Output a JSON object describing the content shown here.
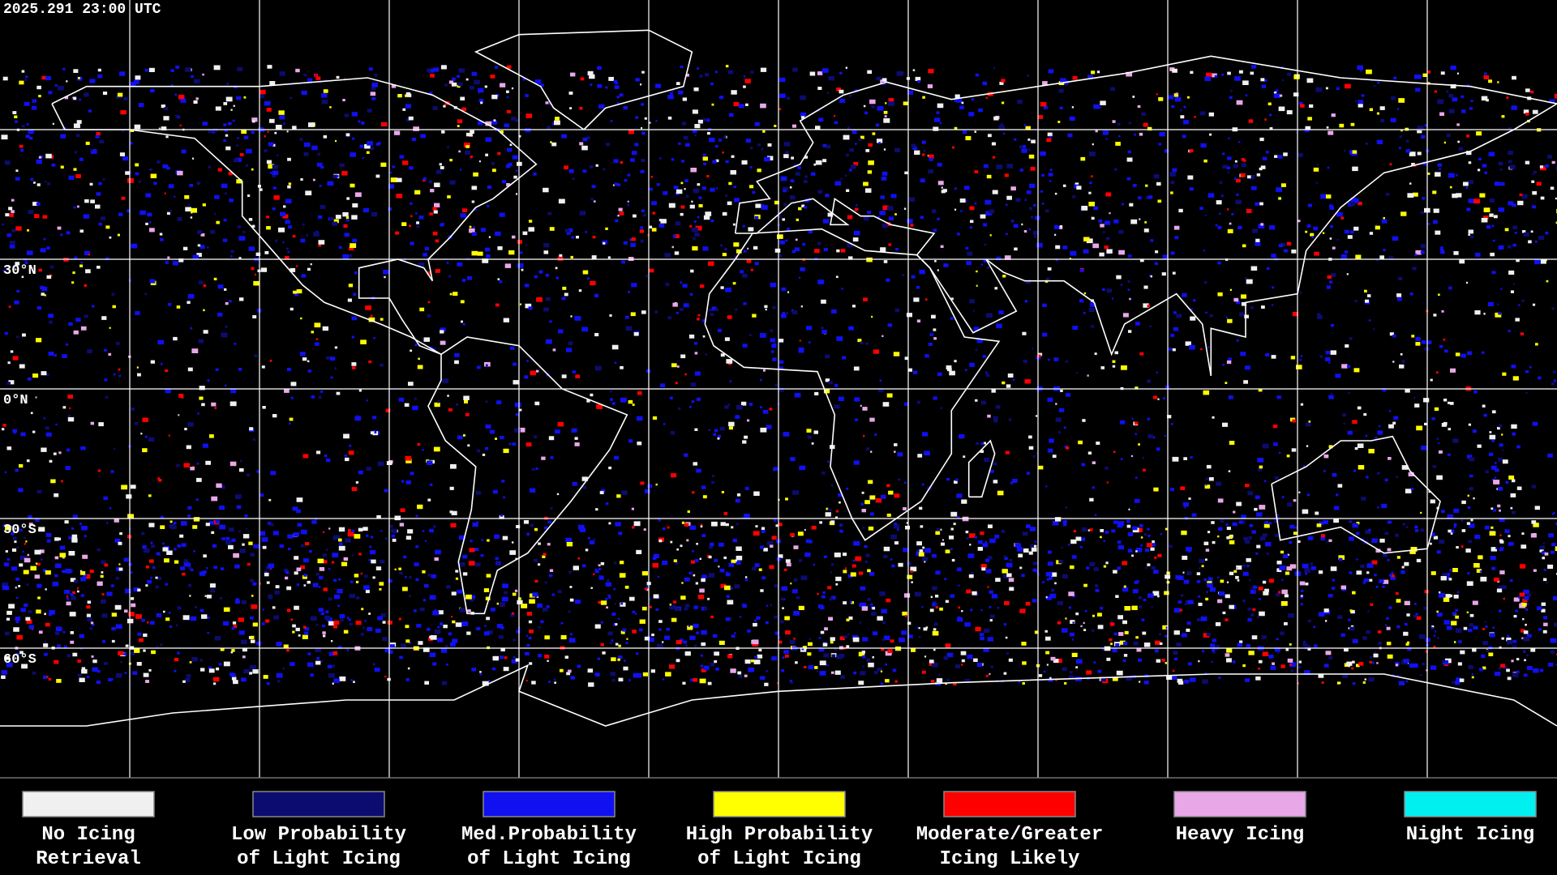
{
  "timestamp": "2025.291 23:00 UTC",
  "latitude_labels": [
    "30°N",
    "0°N",
    "30°S",
    "60°S"
  ],
  "legend": [
    {
      "label": [
        "No Icing",
        "Retrieval"
      ],
      "color": "#f0f0f0"
    },
    {
      "label": [
        "Low Probability",
        "of Light Icing"
      ],
      "color": "#0c0c70"
    },
    {
      "label": [
        "Med.Probability",
        "of Light Icing"
      ],
      "color": "#1010f0"
    },
    {
      "label": [
        "High Probability",
        "of Light Icing"
      ],
      "color": "#ffff00"
    },
    {
      "label": [
        "Moderate/Greater",
        "Icing Likely"
      ],
      "color": "#ff0000"
    },
    {
      "label": [
        "Heavy Icing"
      ],
      "color": "#e8a8e8"
    },
    {
      "label": [
        "Night Icing"
      ],
      "color": "#00f0f0"
    }
  ]
}
